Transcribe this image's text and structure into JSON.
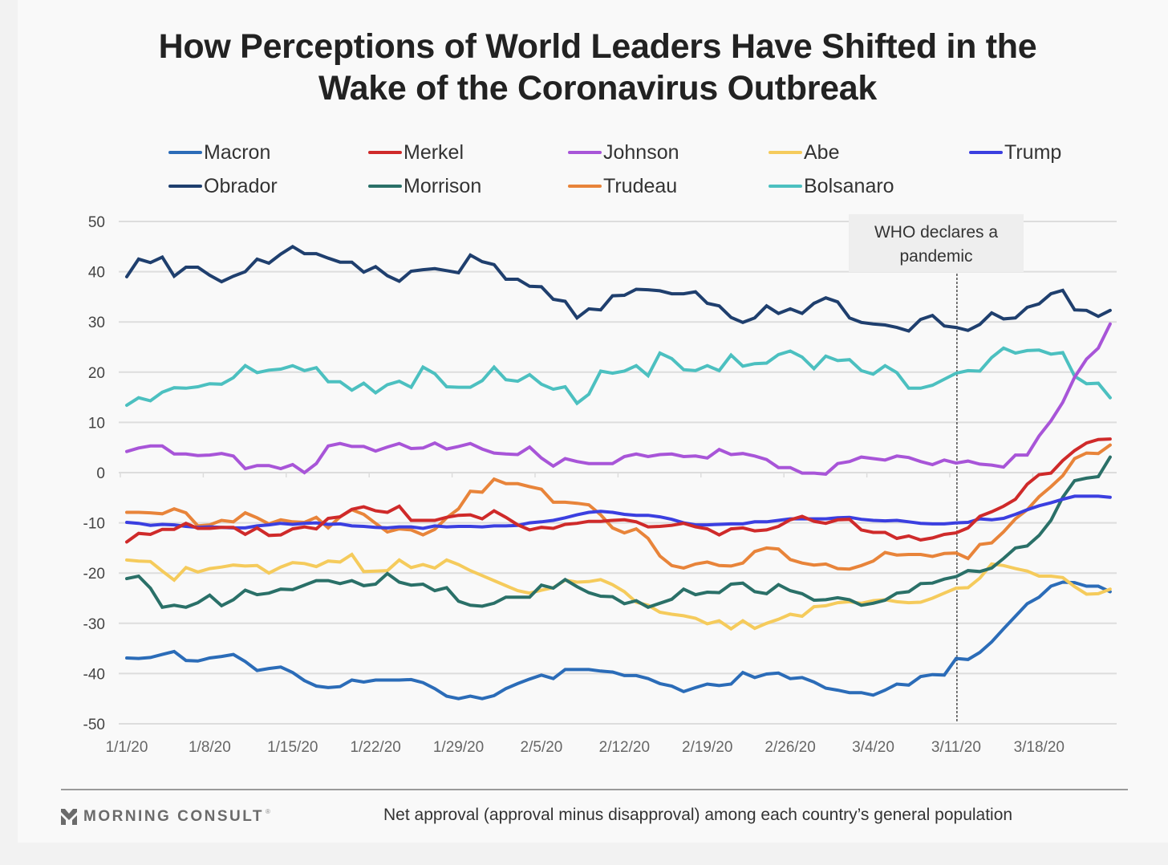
{
  "title": "How Perceptions of World Leaders Have Shifted in the Wake of the Coronavirus Outbreak",
  "title_lines": [
    "How Perceptions of World Leaders Have Shifted in the",
    "Wake of the Coronavirus Outbreak"
  ],
  "annotation": {
    "lines": [
      "WHO declares a",
      "pandemic"
    ],
    "date": "3/11/20"
  },
  "footer": {
    "brand": "MORNING CONSULT",
    "note": "Net approval (approval minus disapproval) among each country’s general population"
  },
  "chart_data": {
    "type": "line",
    "title": "How Perceptions of World Leaders Have Shifted in the Wake of the Coronavirus Outbreak",
    "xlabel": "",
    "ylabel": "Net approval",
    "ylim": [
      -50,
      50
    ],
    "yticks": [
      50,
      40,
      30,
      20,
      10,
      0,
      -10,
      -20,
      -30,
      -40,
      -50
    ],
    "xticks": [
      "1/1/20",
      "1/8/20",
      "1/15/20",
      "1/22/20",
      "1/29/20",
      "2/5/20",
      "2/12/20",
      "2/19/20",
      "2/26/20",
      "3/4/20",
      "3/11/20",
      "3/18/20"
    ],
    "x_start": "1/1/20",
    "x_end": "3/24/20",
    "x_unit": "day",
    "grid": true,
    "legend_position": "top",
    "vline": {
      "x": "3/11/20",
      "label": "WHO declares a pandemic",
      "style": "dashed"
    },
    "series": [
      {
        "name": "Macron",
        "color": "#2b6cb8",
        "values": [
          -36.9,
          -37,
          -36.8,
          -36.2,
          -35.6,
          -37.4,
          -37.5,
          -36.9,
          -36.6,
          -36.2,
          -37.6,
          -39.4,
          -39,
          -38.7,
          -39.8,
          -41.4,
          -42.5,
          -42.8,
          -42.6,
          -41.3,
          -41.7,
          -41.3,
          -41.3,
          -41.3,
          -41.2,
          -41.8,
          -43,
          -44.5,
          -45,
          -44.5,
          -45,
          -44.4,
          -43,
          -42,
          -41.1,
          -40.3,
          -41,
          -39.2,
          -39.2,
          -39.2,
          -39.5,
          -39.7,
          -40.4,
          -40.4,
          -41,
          -42,
          -42.5,
          -43.6,
          -42.8,
          -42.1,
          -42.4,
          -42.1,
          -39.8,
          -40.8,
          -40.1,
          -39.9,
          -41,
          -40.8,
          -41.7,
          -42.9,
          -43.3,
          -43.8,
          -43.8,
          -44.3,
          -43.3,
          -42.1,
          -42.3,
          -40.6,
          -40.2,
          -40.3,
          -37,
          -37.2,
          -35.8,
          -33.7,
          -31.1,
          -28.6,
          -26.1,
          -24.8,
          -22.6,
          -21.8,
          -21.9,
          -22.6,
          -22.6,
          -23.7
        ]
      },
      {
        "name": "Merkel",
        "color": "#cf2a2a",
        "values": [
          -13.8,
          -12.1,
          -12.3,
          -11.3,
          -11.3,
          -10.1,
          -11.1,
          -11.1,
          -10.9,
          -10.9,
          -12.3,
          -11,
          -12.5,
          -12.4,
          -11.2,
          -10.8,
          -11.2,
          -9.1,
          -8.8,
          -7.3,
          -6.8,
          -7.6,
          -7.9,
          -6.7,
          -9.5,
          -9.5,
          -9.5,
          -8.9,
          -8.5,
          -8.4,
          -9.2,
          -7.6,
          -8.9,
          -10.4,
          -11.4,
          -10.9,
          -11.1,
          -10.3,
          -10.1,
          -9.7,
          -9.7,
          -9.5,
          -9.4,
          -9.8,
          -10.8,
          -10.7,
          -10.5,
          -10.1,
          -10.8,
          -11.2,
          -12.4,
          -11.2,
          -11,
          -11.6,
          -11.4,
          -10.7,
          -9.4,
          -8.7,
          -9.7,
          -10.1,
          -9.4,
          -9.3,
          -11.4,
          -11.9,
          -11.9,
          -13.1,
          -12.6,
          -13.4,
          -13,
          -12.3,
          -12,
          -11,
          -8.7,
          -7.8,
          -6.7,
          -5.3,
          -2.3,
          -0.4,
          -0.1,
          2.4,
          4.4,
          5.9,
          6.6,
          6.7
        ]
      },
      {
        "name": "Johnson",
        "color": "#a855d8",
        "values": [
          4.2,
          4.9,
          5.3,
          5.3,
          3.7,
          3.7,
          3.4,
          3.5,
          3.8,
          3.3,
          0.8,
          1.4,
          1.4,
          0.8,
          1.6,
          0,
          1.8,
          5.3,
          5.8,
          5.2,
          5.2,
          4.3,
          5.1,
          5.8,
          4.8,
          4.9,
          5.9,
          4.7,
          5.2,
          5.8,
          4.7,
          3.9,
          3.7,
          3.6,
          5.1,
          2.9,
          1.3,
          2.8,
          2.2,
          1.8,
          1.8,
          1.8,
          3.2,
          3.7,
          3.2,
          3.6,
          3.7,
          3.2,
          3.3,
          2.9,
          4.6,
          3.6,
          3.8,
          3.3,
          2.6,
          1,
          1,
          -0.1,
          -0.1,
          -0.3,
          1.8,
          2.2,
          3.1,
          2.8,
          2.5,
          3.3,
          3,
          2.2,
          1.6,
          2.5,
          1.9,
          2.3,
          1.7,
          1.5,
          1.1,
          3.5,
          3.5,
          7.3,
          10.3,
          14,
          19,
          22.6,
          24.8,
          29.6
        ]
      },
      {
        "name": "Abe",
        "color": "#f5cb5c",
        "values": [
          -17.4,
          -17.6,
          -17.7,
          -19.6,
          -21.4,
          -18.9,
          -19.8,
          -19.1,
          -18.8,
          -18.4,
          -18.6,
          -18.5,
          -20,
          -18.8,
          -17.9,
          -18.1,
          -18.7,
          -17.6,
          -17.8,
          -16.3,
          -19.7,
          -19.6,
          -19.5,
          -17.4,
          -18.9,
          -18.3,
          -19,
          -17.4,
          -18.3,
          -19.5,
          -20.5,
          -21.5,
          -22.5,
          -23.5,
          -24,
          -23.4,
          -22.9,
          -21.4,
          -21.8,
          -21.7,
          -21.3,
          -22.3,
          -23.7,
          -25.8,
          -26.4,
          -27.8,
          -28.2,
          -28.5,
          -29,
          -30.1,
          -29.5,
          -31.1,
          -29.5,
          -31,
          -30,
          -29.2,
          -28.2,
          -28.6,
          -26.7,
          -26.5,
          -25.9,
          -25.7,
          -26,
          -25.5,
          -25.3,
          -25.7,
          -25.9,
          -25.8,
          -25,
          -24,
          -23,
          -22.9,
          -21,
          -18.2,
          -18.5,
          -19.1,
          -19.6,
          -20.6,
          -20.6,
          -20.9,
          -22.7,
          -24.2,
          -24.1,
          -23.2
        ]
      },
      {
        "name": "Trump",
        "color": "#3b3fe0",
        "values": [
          -9.9,
          -10.1,
          -10.5,
          -10.3,
          -10.4,
          -10.7,
          -10.9,
          -10.8,
          -10.9,
          -11,
          -11,
          -10.6,
          -10.4,
          -10.1,
          -10.3,
          -10.1,
          -10,
          -10.3,
          -10.2,
          -10.6,
          -10.7,
          -10.9,
          -11,
          -10.8,
          -10.8,
          -11.1,
          -10.6,
          -10.8,
          -10.7,
          -10.7,
          -10.8,
          -10.6,
          -10.6,
          -10.5,
          -10,
          -9.8,
          -9.5,
          -9,
          -8.4,
          -7.9,
          -7.7,
          -7.9,
          -8.3,
          -8.5,
          -8.5,
          -8.8,
          -9.3,
          -10,
          -10.4,
          -10.4,
          -10.3,
          -10.2,
          -10.2,
          -9.8,
          -9.8,
          -9.5,
          -9.2,
          -9.2,
          -9.2,
          -9.2,
          -9,
          -8.9,
          -9.3,
          -9.5,
          -9.6,
          -9.5,
          -9.8,
          -10.1,
          -10.2,
          -10.2,
          -10,
          -9.9,
          -9.2,
          -9.4,
          -9.1,
          -8.3,
          -7.4,
          -6.6,
          -6,
          -5.3,
          -4.7,
          -4.7,
          -4.7,
          -4.9
        ]
      },
      {
        "name": "Obrador",
        "color": "#1f3f6e",
        "values": [
          39,
          42.5,
          41.8,
          42.9,
          39.1,
          40.9,
          40.9,
          39.3,
          38,
          39.1,
          40,
          42.5,
          41.7,
          43.5,
          45,
          43.6,
          43.6,
          42.7,
          41.9,
          41.9,
          39.9,
          41,
          39.2,
          38.1,
          40.1,
          40.4,
          40.6,
          40.2,
          39.8,
          43.3,
          42,
          41.4,
          38.5,
          38.5,
          37.1,
          37,
          34.5,
          34.1,
          30.8,
          32.6,
          32.4,
          35.2,
          35.3,
          36.5,
          36.4,
          36.2,
          35.6,
          35.6,
          36,
          33.7,
          33.2,
          30.9,
          29.9,
          30.8,
          33.2,
          31.7,
          32.6,
          31.7,
          33.7,
          34.8,
          34,
          30.8,
          29.9,
          29.6,
          29.4,
          28.9,
          28.2,
          30.5,
          31.3,
          29.2,
          28.9,
          28.3,
          29.5,
          31.8,
          30.6,
          30.8,
          32.9,
          33.6,
          35.6,
          36.3,
          32.4,
          32.3,
          31.1,
          32.3
        ]
      },
      {
        "name": "Morrison",
        "color": "#2a7068",
        "values": [
          -21.1,
          -20.6,
          -23,
          -26.8,
          -26.4,
          -26.8,
          -25.9,
          -24.4,
          -26.5,
          -25.3,
          -23.4,
          -24.3,
          -24,
          -23.2,
          -23.3,
          -22.4,
          -21.5,
          -21.5,
          -22.1,
          -21.5,
          -22.5,
          -22.2,
          -20.1,
          -21.8,
          -22.4,
          -22.2,
          -23.5,
          -22.9,
          -25.6,
          -26.4,
          -26.6,
          -26,
          -24.8,
          -24.8,
          -24.8,
          -22.4,
          -23,
          -21.3,
          -22.7,
          -23.9,
          -24.6,
          -24.7,
          -26.1,
          -25.5,
          -26.8,
          -26,
          -25.2,
          -23.2,
          -24.3,
          -23.8,
          -23.9,
          -22.2,
          -22,
          -23.7,
          -24.1,
          -22.3,
          -23.5,
          -24.1,
          -25.4,
          -25.3,
          -24.9,
          -25.3,
          -26.4,
          -26,
          -25.4,
          -24,
          -23.7,
          -22.1,
          -22,
          -21.2,
          -20.7,
          -19.5,
          -19.7,
          -19,
          -17.1,
          -15,
          -14.6,
          -12.5,
          -9.5,
          -4.9,
          -1.6,
          -1.1,
          -0.8,
          3.1
        ]
      },
      {
        "name": "Trudeau",
        "color": "#e8843a",
        "values": [
          -7.9,
          -7.9,
          -8,
          -8.2,
          -7.2,
          -8,
          -10.6,
          -10.4,
          -9.5,
          -9.8,
          -8,
          -9,
          -10.2,
          -9.4,
          -9.8,
          -9.9,
          -8.9,
          -11,
          -8.8,
          -7.4,
          -8.3,
          -10.1,
          -11.8,
          -11.2,
          -11.4,
          -12.4,
          -11.3,
          -9,
          -7.2,
          -3.7,
          -3.9,
          -1.3,
          -2.2,
          -2.2,
          -2.8,
          -3.3,
          -5.9,
          -5.9,
          -6.1,
          -6.4,
          -8.4,
          -11,
          -12,
          -11.2,
          -13.1,
          -16.6,
          -18.5,
          -19,
          -18.2,
          -17.8,
          -18.5,
          -18.6,
          -18,
          -15.7,
          -15,
          -15.2,
          -17.3,
          -18,
          -18.4,
          -18.2,
          -19.1,
          -19.2,
          -18.5,
          -17.6,
          -15.9,
          -16.4,
          -16.3,
          -16.3,
          -16.7,
          -16.1,
          -16,
          -17.1,
          -14.3,
          -14,
          -11.8,
          -9.2,
          -7.4,
          -4.8,
          -2.8,
          -0.6,
          2.8,
          3.9,
          3.8,
          5.5
        ]
      },
      {
        "name": "Bolsanaro",
        "color": "#4cc0c0",
        "values": [
          13.4,
          14.9,
          14.3,
          16,
          16.9,
          16.8,
          17.1,
          17.7,
          17.6,
          18.9,
          21.3,
          19.9,
          20.4,
          20.6,
          21.3,
          20.3,
          20.9,
          18.1,
          18.1,
          16.4,
          17.8,
          15.9,
          17.5,
          18.2,
          17,
          21,
          19.7,
          17.1,
          17,
          17,
          18.3,
          21,
          18.5,
          18.2,
          19.5,
          17.6,
          16.6,
          17.1,
          13.8,
          15.6,
          20.2,
          19.8,
          20.2,
          21.3,
          19.3,
          23.8,
          22.7,
          20.5,
          20.3,
          21.3,
          20.3,
          23.4,
          21.2,
          21.7,
          21.8,
          23.5,
          24.2,
          23,
          20.7,
          23.2,
          22.3,
          22.5,
          20.3,
          19.6,
          21.3,
          19.9,
          16.8,
          16.8,
          17.4,
          18.6,
          19.8,
          20.3,
          20.2,
          22.9,
          24.8,
          23.8,
          24.3,
          24.4,
          23.6,
          23.9,
          19.2,
          17.7,
          17.8,
          14.9
        ]
      }
    ]
  }
}
